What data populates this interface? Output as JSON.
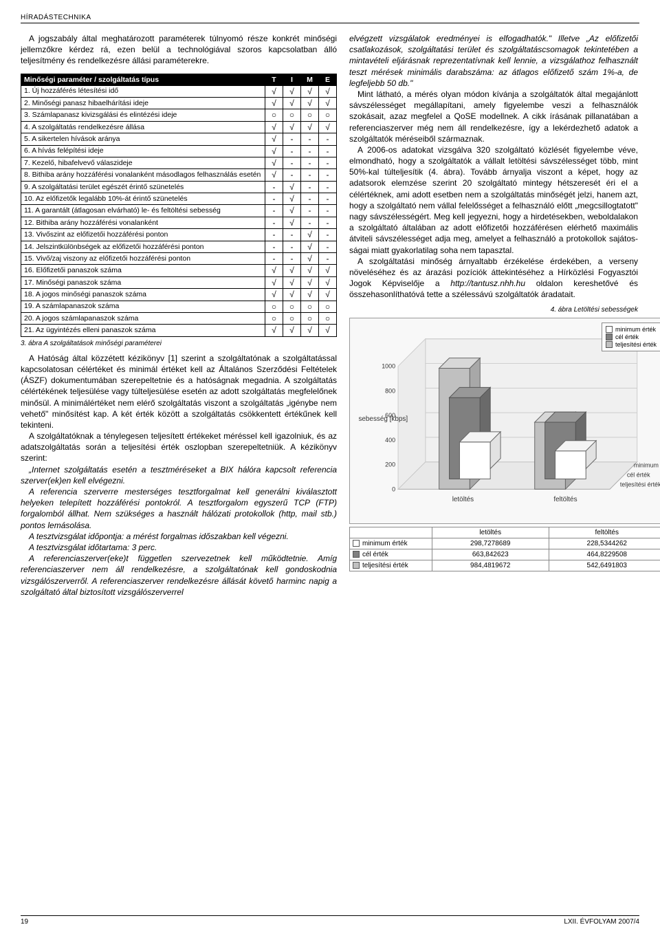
{
  "header": {
    "section": "HÍRADÁSTECHNIKA"
  },
  "body": {
    "left_intro": "A jogszabály által meghatározott paraméterek túl­nyomó része konkrét minőségi jellemzőkre kérdez rá, ezen belül a technológiával szoros kapcsolatban álló teljesítmény és rendelkezésre állási paraméterekre.",
    "fig3_caption": "3. ábra  A szolgáltatások minőségi paraméterei",
    "left_p2": "A Hatóság által közzétett kézikönyv [1] szerint a szolgáltatónak a szolgáltatással kapcsolatosan célérté­ket és minimál értéket kell az Általános Szerződési Fel­tételek (ÁSZF) dokumentumában szerepeltetnie és a hatóságnak megadnia. A szolgáltatás célértékének tel­jesülése vagy túlteljesülése esetén az adott szolgálta­tás megfelelőnek minősül. A minimálértéket nem elérő szolgáltatás viszont a szolgáltatás „igénybe nem vehe­tő\" minősítést kap. A két érték között a szolgáltatás csökkentett értékűnek kell tekinteni.",
    "left_p3": "A szolgáltatóknak a ténylegesen teljesített értéke­ket méréssel kell igazolniuk, és az adatszolgáltatás so­rán a teljesítési érték oszlopban szerepeltetniük. A ké­zikönyv szerint:",
    "left_p4_italic": "„Internet szolgáltatás esetén a tesztméréseket a BIX hálóra kapcsolt referencia szerver(ek)en kell elvégezni.",
    "left_p5_italic": "A referencia szerverre mesterséges tesztfor­galmat kell generálni kiválasztott helyeken tele­pített hozzáférési pontokról. A tesztforgalom egy­szerű TCP (FTP) forgalomból állhat. Nem szüksé­ges a használt hálózati protokollok (http, mail stb.) pontos lemásolása.",
    "left_p6_italic": "A tesztvizsgálat időpontja: a mérést forgalmas időszakban kell végezni.",
    "left_p7_italic": "A tesztvizsgálat időtartama: 3 perc.",
    "left_p8_italic": "A referenciaszerver(eke)t független szerve­zetnek kell működtetnie. Amíg referenciaszerver nem áll rendelkezésre, a szolgáltatónak kell gon­doskodnia vizsgálószerverről. A referenciaszer­ver rendelkezésre állását követő harminc napig a szolgáltató által biztosított vizsgálószerverrel",
    "right_p1": "elvégzett vizsgálatok eredményei is elfogadhatók.\" Illet­ve „Az előfizetői csatlakozások, szolgáltatási terület és szolgáltatáscsomagok tekintetében a mintavételi eljá­rásnak reprezentatívnak kell lennie, a vizsgálathoz fel­használt teszt mérések minimá­lis darabszáma: az átlagos elő­fizető szám 1%-a, de legfeljebb 50 db.\"",
    "right_p2": "Mint látható, a mérés olyan módon kívánja a szolgáltatók által megajánlott sávszélessé­get megállapítani, amely figye­lembe veszi a felhasználók szokásait, azaz megfelel a Qo­SE modellnek. A cikk írásának pillanatában a referenciaszer­ver még nem áll rendelkezésre, így a lekérdezhető adatok a szolgáltatók méréseiből szár­maznak.",
    "right_p3": "A 2006-os adatokat vizsgál­va 320 szolgáltató közlését fi­gyelembe véve, elmondható, hogy a szolgáltatók a vállalt le­töltési sávszélességet több, mint 50%-kal túlteljesítik (4. ábra). Tovább árnyalja viszont a képet, hogy az adatsorok elemzése szerint 20 szol­gáltató mintegy hétszeresét éri el a célértéknek, ami adott esetben nem a szolgáltatás minőségét jelzi, ha­nem azt, hogy a szolgáltató nem vállal felelősséget a felhasználó előtt „megcsillogtatott\" nagy sávszélessé­gért. Meg kell jegyezni, hogy a hirdetésekben, webol­dalakon a szolgáltató általában az adott előfizetői hoz­záférésen elérhető maximális átviteli sávszélességet adja meg, amelyet a felhasználó a protokollok sajátos­ságai miatt gyakorlatilag soha nem tapasztal.",
    "right_p4a": "A szolgáltatási minőség árnyaltabb érzékelése ér­dekében, a verseny növeléséhez és az árazási pozíci­ók áttekintéséhez a Hírközlési Fogyasztói Jogok Képvi­selője a ",
    "right_p4_url": "http://tantusz.nhh.hu",
    "right_p4b": " oldalon kereshetővé és összehasonlíthatóvá tette a szélessávú szolgáltatók ára­datait.",
    "fig4_caption": "4. ábra  Letöltési sebességek"
  },
  "quality_table": {
    "header": [
      "Minőségi paraméter / szolgáltatás típus",
      "T",
      "I",
      "M",
      "E"
    ],
    "rows": [
      [
        "1. Új hozzáférés létesítési idő",
        "√",
        "√",
        "√",
        "√"
      ],
      [
        "2. Minőségi panasz hibaelhárítási ideje",
        "√",
        "√",
        "√",
        "√"
      ],
      [
        "3. Számlapanasz kivizsgálási és elintézési ideje",
        "○",
        "○",
        "○",
        "○"
      ],
      [
        "4. A szolgáltatás rendelkezésre állása",
        "√",
        "√",
        "√",
        "√"
      ],
      [
        "5. A sikertelen hívások aránya",
        "√",
        "-",
        "-",
        "-"
      ],
      [
        "6. A hívás felépítési ideje",
        "√",
        "-",
        "-",
        "-"
      ],
      [
        "7. Kezelő, hibafelvevő válaszideje",
        "√",
        "-",
        "-",
        "-"
      ],
      [
        "8. Bithiba arány hozzáférési vonalanként másodlagos felhasználás esetén",
        "√",
        "-",
        "-",
        "-"
      ],
      [
        "9. A szolgáltatási terület egészét érintő szünetelés",
        "-",
        "√",
        "-",
        "-"
      ],
      [
        "10. Az előfizetők legalább 10%-át érintő szünetelés",
        "-",
        "√",
        "-",
        "-"
      ],
      [
        "11. A garantált (átlagosan elvárható) le- és feltöltési sebesség",
        "-",
        "√",
        "-",
        "-"
      ],
      [
        "12. Bithiba arány hozzáférési vonalanként",
        "-",
        "√",
        "-",
        "-"
      ],
      [
        "13. Vivőszint az előfizetői hozzáférési ponton",
        "-",
        "-",
        "√",
        "-"
      ],
      [
        "14. Jelszintkülönbségek az előfizetői hozzáférési ponton",
        "-",
        "-",
        "√",
        "-"
      ],
      [
        "15. Vivő/zaj viszony az előfizetői hozzáférési ponton",
        "-",
        "-",
        "√",
        "-"
      ],
      [
        "16. Előfizetői panaszok száma",
        "√",
        "√",
        "√",
        "√"
      ],
      [
        "17. Minőségi panaszok száma",
        "√",
        "√",
        "√",
        "√"
      ],
      [
        "18. A jogos minőségi panaszok száma",
        "√",
        "√",
        "√",
        "√"
      ],
      [
        "19. A számlapanaszok száma",
        "○",
        "○",
        "○",
        "○"
      ],
      [
        "20. A jogos számlapanaszok száma",
        "○",
        "○",
        "○",
        "○"
      ],
      [
        "21. Az ügyintézés elleni panaszok száma",
        "√",
        "√",
        "√",
        "√"
      ]
    ]
  },
  "chart": {
    "type": "3d-bar",
    "series": [
      "minimum érték",
      "cél érték",
      "teljesítési érték"
    ],
    "series_colors": [
      "#ffffff",
      "#808080",
      "#c0c0c0"
    ],
    "groups": [
      "letöltés",
      "feltöltés"
    ],
    "values": {
      "letöltés": [
        298.7278689,
        663.842623,
        984.4819672
      ],
      "feltöltés": [
        228.5344262,
        464.8229508,
        542.6491803
      ]
    },
    "ylabel": "sebesség [kbps]",
    "y_ticks": [
      0,
      200,
      400,
      600,
      800,
      1000
    ],
    "background": "#f8f8f8",
    "grid_color": "#cccccc",
    "axis_3d_labels": [
      "teljesítési érték",
      "cél érték",
      "minimum érték"
    ]
  },
  "data_table": {
    "cols": [
      "",
      "letöltés",
      "feltöltés"
    ],
    "rows": [
      {
        "swatch": "#ffffff",
        "label": "minimum érték",
        "v1": "298,7278689",
        "v2": "228,5344262"
      },
      {
        "swatch": "#808080",
        "label": "cél érték",
        "v1": "663,842623",
        "v2": "464,8229508"
      },
      {
        "swatch": "#c0c0c0",
        "label": "teljesítési érték",
        "v1": "984,4819672",
        "v2": "542,6491803"
      }
    ]
  },
  "footer": {
    "page": "19",
    "issue": "LXII. ÉVFOLYAM 2007/4"
  }
}
